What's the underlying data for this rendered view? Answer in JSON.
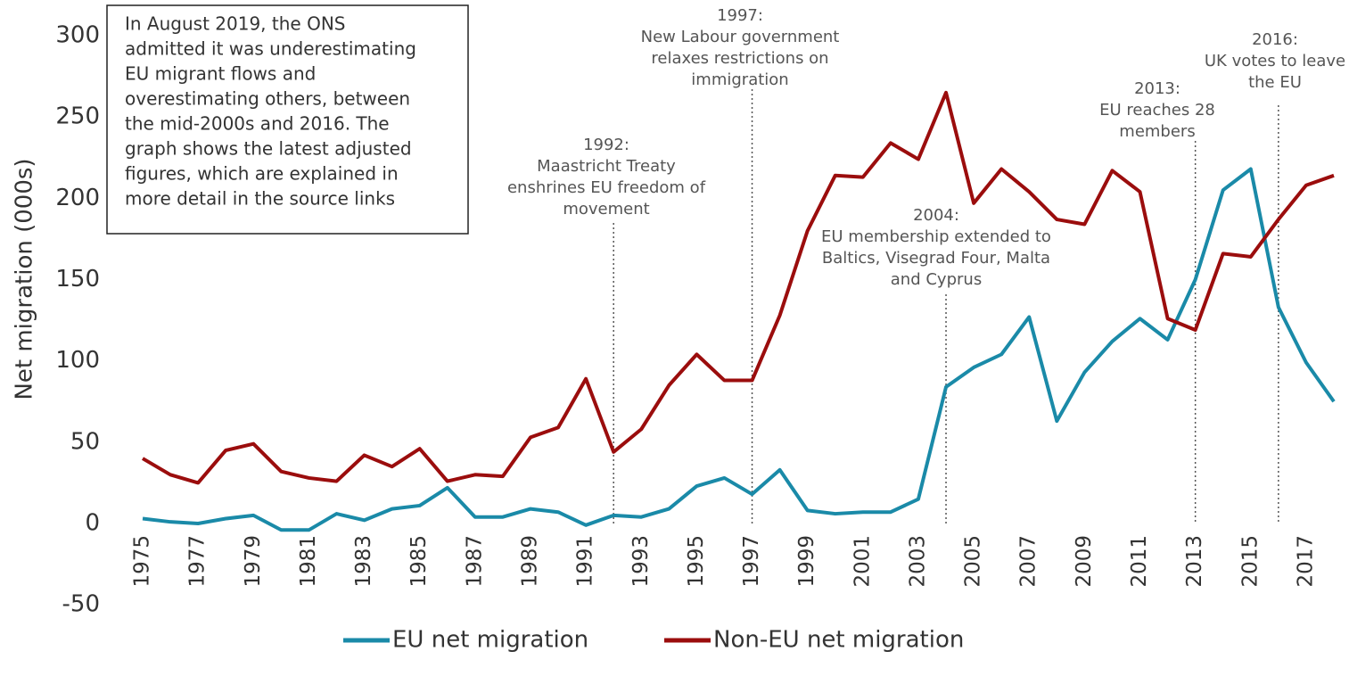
{
  "chart_data": {
    "type": "line",
    "y_label": "Net migration (000s)",
    "categories": [
      1975,
      null,
      1977,
      null,
      1979,
      null,
      1981,
      null,
      1983,
      null,
      1985,
      null,
      1987,
      null,
      1989,
      null,
      1991,
      null,
      1993,
      null,
      1995,
      null,
      1997,
      null,
      1999,
      null,
      2001,
      null,
      2003,
      null,
      2005,
      null,
      2007,
      null,
      2009,
      null,
      2011,
      null,
      2013,
      null,
      2015,
      null,
      2017,
      null
    ],
    "series": [
      {
        "name": "EU net migration",
        "color": "#1a8aa8",
        "values": [
          3,
          1,
          0,
          3,
          5,
          -4,
          -4,
          6,
          2,
          9,
          11,
          22,
          4,
          4,
          9,
          7,
          -1,
          5,
          4,
          9,
          23,
          28,
          18,
          33,
          8,
          6,
          7,
          7,
          15,
          84,
          96,
          104,
          127,
          63,
          93,
          112,
          126,
          113,
          150,
          205,
          218,
          133,
          99,
          75
        ]
      },
      {
        "name": "Non-EU net migration",
        "color": "#9b0d0d",
        "values": [
          40,
          30,
          25,
          45,
          49,
          32,
          28,
          26,
          42,
          35,
          46,
          26,
          30,
          29,
          53,
          59,
          89,
          44,
          58,
          85,
          104,
          88,
          88,
          128,
          180,
          214,
          213,
          234,
          224,
          265,
          197,
          218,
          204,
          187,
          184,
          217,
          204,
          126,
          119,
          166,
          164,
          187,
          208,
          214
        ]
      }
    ],
    "ylim": [
      -50,
      300
    ],
    "yticks": [
      -50,
      0,
      50,
      100,
      150,
      200,
      250,
      300
    ],
    "annotations": [
      {
        "x": 1992,
        "lines": [
          "1992:",
          "Maastricht Treaty",
          "enshrines EU freedom of",
          "movement"
        ]
      },
      {
        "x": 1997,
        "lines": [
          "1997:",
          "New Labour government",
          "relaxes restrictions on",
          "immigration"
        ]
      },
      {
        "x": 2004,
        "lines": [
          "2004:",
          "EU membership extended to",
          "Baltics, Visegrad Four, Malta",
          "and Cyprus"
        ]
      },
      {
        "x": 2013,
        "lines": [
          "2013:",
          "EU reaches 28",
          "members"
        ]
      },
      {
        "x": 2016,
        "lines": [
          "2016:",
          "UK votes to leave",
          "the EU"
        ]
      }
    ],
    "note": [
      "In August  2019, the ONS",
      "admitted it was underestimating",
      "EU migrant flows and",
      "overestimating others, between",
      "the mid-2000s and 2016. The",
      "graph shows the latest adjusted",
      "figures, which are explained in",
      "more detail in the source links"
    ]
  }
}
